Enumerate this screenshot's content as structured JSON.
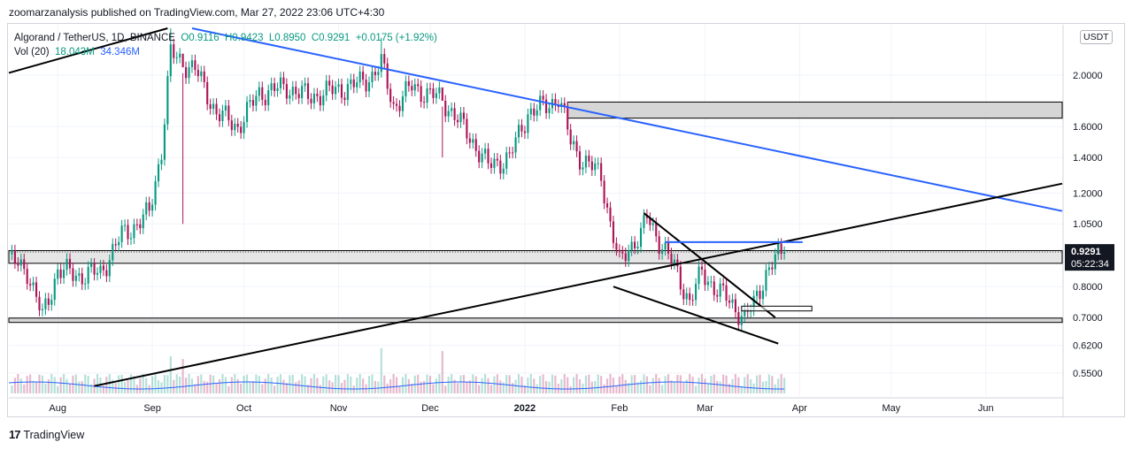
{
  "publish_line": "zoomarzanalysis published on TradingView.com, Mar 27, 2022 23:06 UTC+4:30",
  "footer": {
    "logo_glyph": "17",
    "brand": "TradingView"
  },
  "legend": {
    "symbol": "Algorand / TetherUS, 1D, BINANCE",
    "open": "O0.9116",
    "high": "H0.9423",
    "low": "L0.8950",
    "close": "C0.9291",
    "change": "+0.0175 (+1.92%)",
    "vol_label": "Vol (20)",
    "vol_value": "18.043M",
    "vol_ma": "34.346M"
  },
  "currency": "USDT",
  "price_tags": {
    "last": "0.9291",
    "countdown": "05:22:34"
  },
  "colors": {
    "up": "#089981",
    "down": "#ad1457",
    "trend_blue": "#2962ff",
    "trend_black": "#000000",
    "zone": "#cfcfcf",
    "vol_ma": "#2962ff"
  },
  "chart_data": {
    "type": "candlestick",
    "symbol": "Algorand / TetherUS",
    "interval": "1D",
    "exchange": "BINANCE",
    "y_scale": "log",
    "y_ticks": [
      "2.0000",
      "1.6000",
      "1.4000",
      "1.2000",
      "1.0500",
      "0.8000",
      "0.7000",
      "0.6200",
      "0.5500"
    ],
    "y_tick_values": [
      2.0,
      1.6,
      1.4,
      1.2,
      1.05,
      0.8,
      0.7,
      0.62,
      0.55
    ],
    "x_ticks": [
      "Aug",
      "Sep",
      "Oct",
      "Nov",
      "Dec",
      "2022",
      "Feb",
      "Mar",
      "Apr",
      "May",
      "Jun"
    ],
    "x_tick_dates": [
      "2021-08-01",
      "2021-09-01",
      "2021-10-01",
      "2021-11-01",
      "2021-12-01",
      "2022-01-01",
      "2022-02-01",
      "2022-03-01",
      "2022-04-01",
      "2022-05-01",
      "2022-06-01"
    ],
    "close_path": [
      [
        "2021-07-16",
        0.9
      ],
      [
        "2021-07-22",
        0.86
      ],
      [
        "2021-07-27",
        0.7
      ],
      [
        "2021-08-01",
        0.86
      ],
      [
        "2021-08-08",
        0.84
      ],
      [
        "2021-08-15",
        0.85
      ],
      [
        "2021-08-22",
        1.0
      ],
      [
        "2021-08-27",
        1.05
      ],
      [
        "2021-08-31",
        1.1
      ],
      [
        "2021-09-04",
        1.45
      ],
      [
        "2021-09-07",
        2.2
      ],
      [
        "2021-09-09",
        2.15
      ],
      [
        "2021-09-15",
        2.05
      ],
      [
        "2021-09-22",
        1.7
      ],
      [
        "2021-09-29",
        1.6
      ],
      [
        "2021-10-06",
        1.85
      ],
      [
        "2021-10-15",
        1.9
      ],
      [
        "2021-10-22",
        1.82
      ],
      [
        "2021-10-30",
        1.87
      ],
      [
        "2021-11-07",
        1.92
      ],
      [
        "2021-11-12",
        2.0
      ],
      [
        "2021-11-15",
        2.1
      ],
      [
        "2021-11-19",
        1.75
      ],
      [
        "2021-11-25",
        1.9
      ],
      [
        "2021-11-30",
        1.85
      ],
      [
        "2021-12-05",
        1.8
      ],
      [
        "2021-12-10",
        1.65
      ],
      [
        "2021-12-15",
        1.5
      ],
      [
        "2021-12-20",
        1.35
      ],
      [
        "2021-12-27",
        1.4
      ],
      [
        "2022-01-02",
        1.7
      ],
      [
        "2022-01-08",
        1.75
      ],
      [
        "2022-01-12",
        1.82
      ],
      [
        "2022-01-16",
        1.5
      ],
      [
        "2022-01-20",
        1.38
      ],
      [
        "2022-01-26",
        1.3
      ],
      [
        "2022-01-29",
        1.05
      ],
      [
        "2022-02-01",
        0.88
      ],
      [
        "2022-02-04",
        0.95
      ],
      [
        "2022-02-08",
        1.0
      ],
      [
        "2022-02-10",
        1.08
      ],
      [
        "2022-02-14",
        0.98
      ],
      [
        "2022-02-19",
        0.87
      ],
      [
        "2022-02-24",
        0.75
      ],
      [
        "2022-02-28",
        0.85
      ],
      [
        "2022-03-04",
        0.8
      ],
      [
        "2022-03-09",
        0.75
      ],
      [
        "2022-03-14",
        0.7
      ],
      [
        "2022-03-17",
        0.74
      ],
      [
        "2022-03-21",
        0.85
      ],
      [
        "2022-03-24",
        0.9
      ],
      [
        "2022-03-27",
        0.9291
      ]
    ],
    "spikes": [
      [
        "2021-09-07",
        2.45
      ],
      [
        "2021-11-15",
        2.35
      ],
      [
        "2021-12-05",
        1.4
      ],
      [
        "2021-09-11",
        1.05
      ]
    ],
    "volume": {
      "label": "Vol (20)",
      "ma_label": "34.346M",
      "last": "18.043M"
    },
    "zones": [
      {
        "type": "support/resistance",
        "from": 0.885,
        "to": 0.935
      },
      {
        "type": "support",
        "from": 0.685,
        "to": 0.698
      },
      {
        "type": "resistance",
        "from": 1.66,
        "to": 1.78
      }
    ],
    "trendlines": [
      {
        "color": "blue",
        "from": [
          "2021-09-14",
          2.45
        ],
        "to": [
          "2022-06-26",
          1.11
        ]
      },
      {
        "color": "black",
        "from": [
          "2021-08-13",
          0.52
        ],
        "to": [
          "2022-06-26",
          1.25
        ]
      },
      {
        "color": "black",
        "from": [
          "2021-07-16",
          2.02
        ],
        "to": [
          "2021-09-06",
          2.45
        ]
      },
      {
        "color": "black",
        "from": [
          "2022-01-30",
          0.8
        ],
        "to": [
          "2022-03-25",
          0.625
        ]
      },
      {
        "color": "black",
        "from": [
          "2022-02-09",
          1.1
        ],
        "to": [
          "2022-03-24",
          0.7
        ]
      },
      {
        "color": "blue",
        "from": [
          "2022-02-16",
          0.97
        ],
        "to": [
          "2022-04-02",
          0.97
        ]
      }
    ],
    "last_price": 0.9291,
    "countdown": "05:22:34"
  }
}
